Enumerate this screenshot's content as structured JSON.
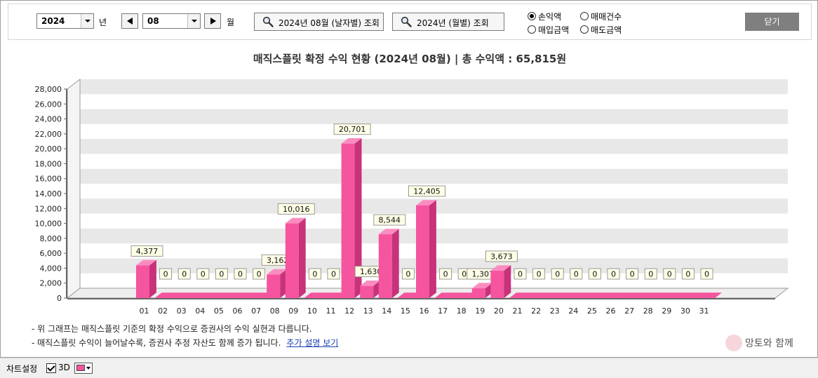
{
  "toolbar": {
    "year_value": "2024",
    "year_unit": "년",
    "month_value": "08",
    "month_unit": "월",
    "daily_query_label": "2024년 08월 (날자별) 조회",
    "monthly_query_label": "2024년 (월별) 조회",
    "radio_options": [
      {
        "label": "손익액",
        "selected": true
      },
      {
        "label": "매매건수",
        "selected": false
      },
      {
        "label": "매입금액",
        "selected": false
      },
      {
        "label": "매도금액",
        "selected": false
      }
    ],
    "close_label": "닫기"
  },
  "chart_title": "매직스플릿 확정 수익 현황 (2024년 08월)  |  총 수익액 : 65,815원",
  "notes": {
    "line1": "- 위 그래프는 매직스플릿 기준의 확정 수익으로 증권사의 수익 실현과 다릅니다.",
    "line2": "- 매직스플릿 수익이 늘어날수록, 증권사 추정 자산도 함께 증가 됩니다.",
    "link": "추가 설명 보기"
  },
  "watermark": "망토와 함께",
  "statusbar": {
    "chart_settings": "차트설정",
    "threed_label": "3D",
    "threed_checked": true,
    "bar_color": "#f5549e"
  },
  "colors": {
    "bar_front": "#f5549e",
    "bar_side": "#c8327a",
    "bar_top": "#fb8cc0",
    "band": "#e8e8e8",
    "close_button": "#7f7f7f"
  },
  "chart_data": {
    "type": "bar",
    "three_d": true,
    "categories": [
      "01",
      "02",
      "03",
      "04",
      "05",
      "06",
      "07",
      "08",
      "09",
      "10",
      "11",
      "12",
      "13",
      "14",
      "15",
      "16",
      "17",
      "18",
      "19",
      "20",
      "21",
      "22",
      "23",
      "24",
      "25",
      "26",
      "27",
      "28",
      "29",
      "30",
      "31"
    ],
    "values": [
      4377,
      0,
      0,
      0,
      0,
      0,
      0,
      3162,
      10016,
      0,
      0,
      20701,
      1630,
      8544,
      0,
      12405,
      0,
      0,
      1307,
      3673,
      0,
      0,
      0,
      0,
      0,
      0,
      0,
      0,
      0,
      0,
      0
    ],
    "value_labels": [
      "4,377",
      "0",
      "0",
      "0",
      "0",
      "0",
      "0",
      "3,162",
      "10,016",
      "0",
      "0",
      "20,701",
      "1,630",
      "8,544",
      "0",
      "12,405",
      "0",
      "0",
      "1,307",
      "3,673",
      "0",
      "0",
      "0",
      "0",
      "0",
      "0",
      "0",
      "0",
      "0",
      "0",
      "0"
    ],
    "y_ticks": [
      "0",
      "2,000",
      "4,000",
      "6,000",
      "8,000",
      "10,000",
      "12,000",
      "14,000",
      "16,000",
      "18,000",
      "20,000",
      "22,000",
      "24,000",
      "26,000",
      "28,000"
    ],
    "ylim": [
      0,
      28000
    ],
    "grid": "horizontal bands"
  }
}
